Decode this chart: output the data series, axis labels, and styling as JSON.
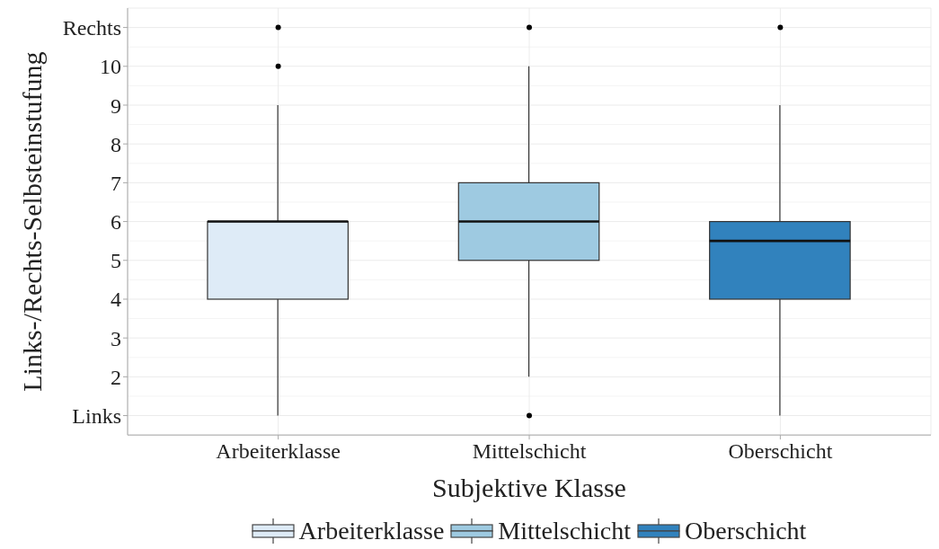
{
  "chart_data": {
    "type": "box",
    "categories": [
      "Arbeiterklasse",
      "Mittelschicht",
      "Oberschicht"
    ],
    "series": [
      {
        "name": "Arbeiterklasse",
        "color": "#deebf7",
        "boxes": [
          {
            "low": 1,
            "q1": 4,
            "median": 6,
            "q3": 6,
            "high": 9,
            "outliers": [
              10,
              11
            ]
          },
          null,
          null
        ]
      },
      {
        "name": "Mittelschicht",
        "color": "#9ecae1",
        "boxes": [
          null,
          {
            "low": 2,
            "q1": 5,
            "median": 6,
            "q3": 7,
            "high": 10,
            "outliers": [
              1,
              11
            ]
          },
          null
        ]
      },
      {
        "name": "Oberschicht",
        "color": "#3182bd",
        "boxes": [
          null,
          null,
          {
            "low": 1,
            "q1": 4,
            "median": 5.5,
            "q3": 6,
            "high": 9,
            "outliers": [
              11
            ]
          }
        ]
      }
    ],
    "xlabel": "Subjektive Klasse",
    "ylabel": "Links-/Rechts-Selbsteinstufung",
    "ylim": [
      0.5,
      11.5
    ],
    "yticks": [
      {
        "value": 1,
        "label": "Links"
      },
      2,
      3,
      4,
      5,
      6,
      7,
      8,
      9,
      10,
      {
        "value": 11,
        "label": "Rechts"
      }
    ],
    "grid": true,
    "legend": "bottom"
  }
}
